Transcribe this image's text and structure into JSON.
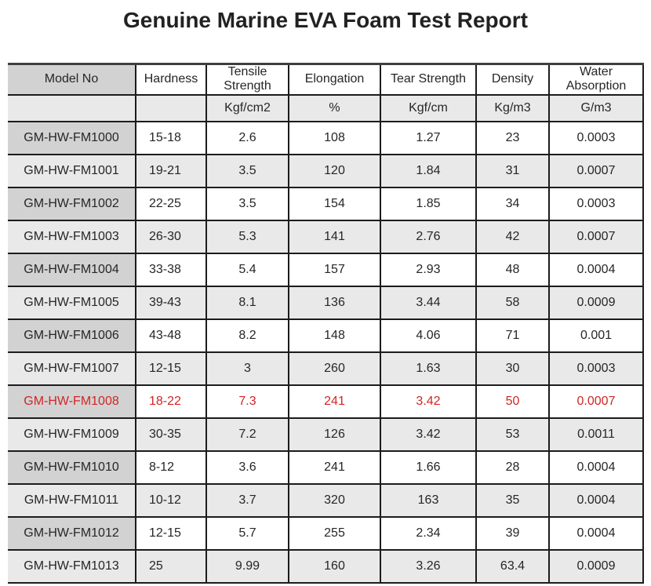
{
  "title": "Genuine Marine EVA Foam Test Report",
  "table": {
    "columns": [
      {
        "label": "Model No",
        "unit": ""
      },
      {
        "label": "Hardness",
        "unit": ""
      },
      {
        "label": "Tensile Strength",
        "unit": "Kgf/cm2"
      },
      {
        "label": "Elongation",
        "unit": "%"
      },
      {
        "label": "Tear Strength",
        "unit": "Kgf/cm"
      },
      {
        "label": "Density",
        "unit": "Kg/m3"
      },
      {
        "label": "Water Absorption",
        "unit": "G/m3"
      }
    ],
    "rows": [
      {
        "model": "GM-HW-FM1000",
        "values": [
          "15-18",
          "2.6",
          "108",
          "1.27",
          "23",
          "0.0003"
        ],
        "highlight": false
      },
      {
        "model": "GM-HW-FM1001",
        "values": [
          "19-21",
          "3.5",
          "120",
          "1.84",
          "31",
          "0.0007"
        ],
        "highlight": false
      },
      {
        "model": "GM-HW-FM1002",
        "values": [
          "22-25",
          "3.5",
          "154",
          "1.85",
          "34",
          "0.0003"
        ],
        "highlight": false
      },
      {
        "model": "GM-HW-FM1003",
        "values": [
          "26-30",
          "5.3",
          "141",
          "2.76",
          "42",
          "0.0007"
        ],
        "highlight": false
      },
      {
        "model": "GM-HW-FM1004",
        "values": [
          "33-38",
          "5.4",
          "157",
          "2.93",
          "48",
          "0.0004"
        ],
        "highlight": false
      },
      {
        "model": "GM-HW-FM1005",
        "values": [
          "39-43",
          "8.1",
          "136",
          "3.44",
          "58",
          "0.0009"
        ],
        "highlight": false
      },
      {
        "model": "GM-HW-FM1006",
        "values": [
          "43-48",
          "8.2",
          "148",
          "4.06",
          "71",
          "0.001"
        ],
        "highlight": false
      },
      {
        "model": "GM-HW-FM1007",
        "values": [
          "12-15",
          "3",
          "260",
          "1.63",
          "30",
          "0.0003"
        ],
        "highlight": false
      },
      {
        "model": "GM-HW-FM1008",
        "values": [
          "18-22",
          "7.3",
          "241",
          "3.42",
          "50",
          "0.0007"
        ],
        "highlight": true
      },
      {
        "model": "GM-HW-FM1009",
        "values": [
          "30-35",
          "7.2",
          "126",
          "3.42",
          "53",
          "0.0011"
        ],
        "highlight": false
      },
      {
        "model": "GM-HW-FM1010",
        "values": [
          "8-12",
          "3.6",
          "241",
          "1.66",
          "28",
          "0.0004"
        ],
        "highlight": false
      },
      {
        "model": "GM-HW-FM1011",
        "values": [
          "10-12",
          "3.7",
          "320",
          "163",
          "35",
          "0.0004"
        ],
        "highlight": false
      },
      {
        "model": "GM-HW-FM1012",
        "values": [
          "12-15",
          "5.7",
          "255",
          "2.34",
          "39",
          "0.0004"
        ],
        "highlight": false
      },
      {
        "model": "GM-HW-FM1013",
        "values": [
          "25",
          "9.99",
          "160",
          "3.26",
          "63.4",
          "0.0009"
        ],
        "highlight": false
      }
    ]
  },
  "colors": {
    "highlight_text": "#cf2626",
    "model_cell_dark": "#d2d2d2",
    "row_shade_bg": "#e9e9e9",
    "row_white_bg": "#ffffff",
    "border": "#1c1c1c",
    "title_text": "#222222",
    "body_text": "#262626"
  }
}
